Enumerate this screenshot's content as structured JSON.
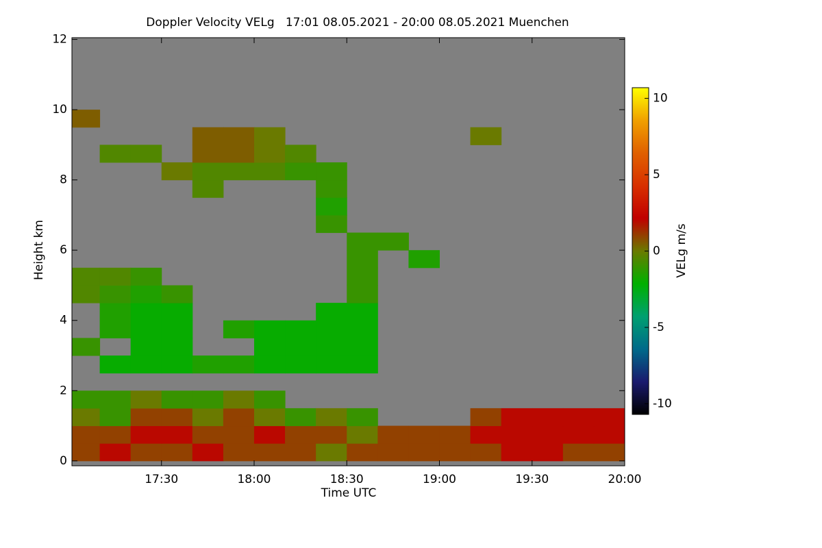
{
  "chart_data": {
    "type": "heatmap",
    "title": "Doppler Velocity VELg   17:01 08.05.2021 - 20:00 08.05.2021 Muenchen",
    "x_label": "Time UTC",
    "y_label": "Height km",
    "colorbar_label": "VELg m/s",
    "x": [
      1025,
      1035,
      1045,
      1055,
      1065,
      1075,
      1085,
      1095,
      1105,
      1115,
      1125,
      1135,
      1145,
      1155,
      1165,
      1175,
      1185,
      1195
    ],
    "y": [
      0.25,
      0.75,
      1.25,
      1.75,
      2.25,
      2.75,
      3.25,
      3.75,
      4.25,
      4.75,
      5.25,
      5.75,
      6.25,
      6.75,
      7.25,
      7.75,
      8.25,
      8.75,
      9.25,
      9.75,
      10.25,
      10.75,
      11.25,
      11.75
    ],
    "z": [
      [
        1,
        2,
        1,
        1,
        2,
        1,
        1,
        1,
        0,
        1,
        1,
        1,
        1,
        1,
        2,
        2,
        1,
        1
      ],
      [
        1,
        1,
        2,
        2,
        1,
        1,
        2,
        1,
        1,
        0,
        1,
        1,
        1,
        2,
        2,
        2,
        2,
        2
      ],
      [
        0,
        -1,
        1,
        1,
        0,
        1,
        0,
        -1,
        0,
        -1,
        null,
        null,
        null,
        1,
        2,
        2,
        2,
        2
      ],
      [
        -1,
        -1,
        0,
        -1,
        -1,
        0,
        -1,
        null,
        null,
        null,
        null,
        null,
        null,
        null,
        null,
        null,
        null,
        null
      ],
      [
        null,
        null,
        null,
        null,
        null,
        null,
        null,
        null,
        null,
        null,
        null,
        null,
        null,
        null,
        null,
        null,
        null,
        null
      ],
      [
        null,
        -2,
        -2,
        -2,
        -1.5,
        -1.5,
        -2,
        -2,
        -2,
        -2,
        null,
        null,
        null,
        null,
        null,
        null,
        null,
        null
      ],
      [
        -1,
        null,
        -2,
        -2,
        null,
        null,
        -2,
        -2,
        -2,
        -2,
        null,
        null,
        null,
        null,
        null,
        null,
        null,
        null
      ],
      [
        null,
        -1.5,
        -2,
        -2,
        null,
        -1.5,
        -2,
        -2,
        -2,
        -2,
        null,
        null,
        null,
        null,
        null,
        null,
        null,
        null
      ],
      [
        null,
        -1.5,
        -2,
        -2,
        null,
        null,
        null,
        null,
        -2,
        -2,
        null,
        null,
        null,
        null,
        null,
        null,
        null,
        null
      ],
      [
        -0.5,
        -1,
        -1.5,
        -1,
        null,
        null,
        null,
        null,
        null,
        -1,
        null,
        null,
        null,
        null,
        null,
        null,
        null,
        null
      ],
      [
        -0.5,
        -0.5,
        -1,
        null,
        null,
        null,
        null,
        null,
        null,
        -1,
        null,
        null,
        null,
        null,
        null,
        null,
        null,
        null
      ],
      [
        null,
        null,
        null,
        null,
        null,
        null,
        null,
        null,
        null,
        -1,
        null,
        -1.5,
        null,
        null,
        null,
        null,
        null,
        null
      ],
      [
        null,
        null,
        null,
        null,
        null,
        null,
        null,
        null,
        null,
        -1,
        -1,
        null,
        null,
        null,
        null,
        null,
        null,
        null
      ],
      [
        null,
        null,
        null,
        null,
        null,
        null,
        null,
        null,
        -1,
        null,
        null,
        null,
        null,
        null,
        null,
        null,
        null,
        null
      ],
      [
        null,
        null,
        null,
        null,
        null,
        null,
        null,
        null,
        -1.5,
        null,
        null,
        null,
        null,
        null,
        null,
        null,
        null,
        null
      ],
      [
        null,
        null,
        null,
        null,
        -0.5,
        null,
        null,
        null,
        -1,
        null,
        null,
        null,
        null,
        null,
        null,
        null,
        null,
        null
      ],
      [
        null,
        null,
        null,
        0,
        -0.5,
        -0.5,
        -0.5,
        -1,
        -1,
        null,
        null,
        null,
        null,
        null,
        null,
        null,
        null,
        null
      ],
      [
        null,
        -0.5,
        -0.5,
        null,
        0.5,
        0.5,
        0,
        -0.5,
        null,
        null,
        null,
        null,
        null,
        null,
        null,
        null,
        null,
        null
      ],
      [
        null,
        null,
        null,
        null,
        0.5,
        0.5,
        0,
        null,
        null,
        null,
        null,
        null,
        null,
        0,
        null,
        null,
        null,
        null
      ],
      [
        0.5,
        null,
        null,
        null,
        null,
        null,
        null,
        null,
        null,
        null,
        null,
        null,
        null,
        null,
        null,
        null,
        null,
        null
      ],
      [
        null,
        null,
        null,
        null,
        null,
        null,
        null,
        null,
        null,
        null,
        null,
        null,
        null,
        null,
        null,
        null,
        null,
        null
      ],
      [
        null,
        null,
        null,
        null,
        null,
        null,
        null,
        null,
        null,
        null,
        null,
        null,
        null,
        null,
        null,
        null,
        null,
        null
      ],
      [
        null,
        null,
        null,
        null,
        null,
        null,
        null,
        null,
        null,
        null,
        null,
        null,
        null,
        null,
        null,
        null,
        null,
        null
      ],
      [
        null,
        null,
        null,
        null,
        null,
        null,
        null,
        null,
        null,
        null,
        null,
        null,
        null,
        null,
        null,
        null,
        null,
        null
      ]
    ],
    "xlim": [
      1021,
      1200
    ],
    "xticks": [
      {
        "value": 1050,
        "label": "17:30"
      },
      {
        "value": 1080,
        "label": "18:00"
      },
      {
        "value": 1110,
        "label": "18:30"
      },
      {
        "value": 1140,
        "label": "19:00"
      },
      {
        "value": 1170,
        "label": "19:30"
      },
      {
        "value": 1200,
        "label": "20:00"
      }
    ],
    "ylim": [
      -0.14,
      12.05
    ],
    "yticks": [
      0,
      2,
      4,
      6,
      8,
      10,
      12
    ],
    "zlim": [
      -10.7,
      10.7
    ],
    "zticks": [
      -10,
      -5,
      0,
      5,
      10
    ],
    "colorscale": [
      "#000000",
      "#1a1a6e",
      "#006a8a",
      "#00a070",
      "#00b000",
      "#6a7a00",
      "#c00000",
      "#d83000",
      "#e06000",
      "#f0a000",
      "#ffff00"
    ],
    "nodata_color": "#808080"
  }
}
